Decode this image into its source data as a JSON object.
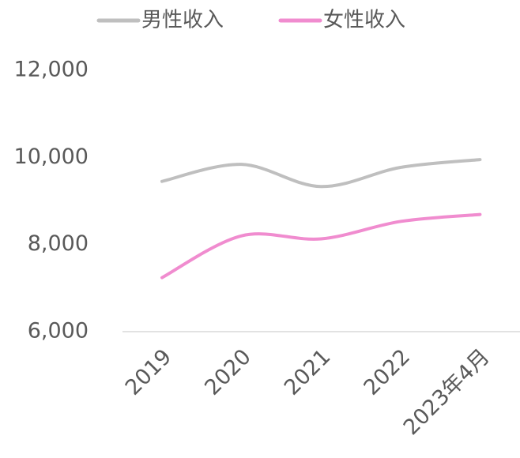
{
  "chart_data": {
    "type": "line",
    "categories": [
      "2019",
      "2020",
      "2021",
      "2022",
      "2023年4月"
    ],
    "series": [
      {
        "name": "男性收入",
        "color": "#bfbfbf",
        "values": [
          9450,
          9840,
          9330,
          9770,
          9950
        ]
      },
      {
        "name": "女性收入",
        "color": "#f08ccf",
        "values": [
          7240,
          8200,
          8130,
          8530,
          8690
        ]
      }
    ],
    "ylim": [
      6000,
      12000
    ],
    "yticks": [
      {
        "value": 6000,
        "label": "6,000"
      },
      {
        "value": 8000,
        "label": "8,000"
      },
      {
        "value": 10000,
        "label": "10,000"
      },
      {
        "value": 12000,
        "label": "12,000"
      }
    ],
    "legend": "top",
    "smooth": true
  }
}
